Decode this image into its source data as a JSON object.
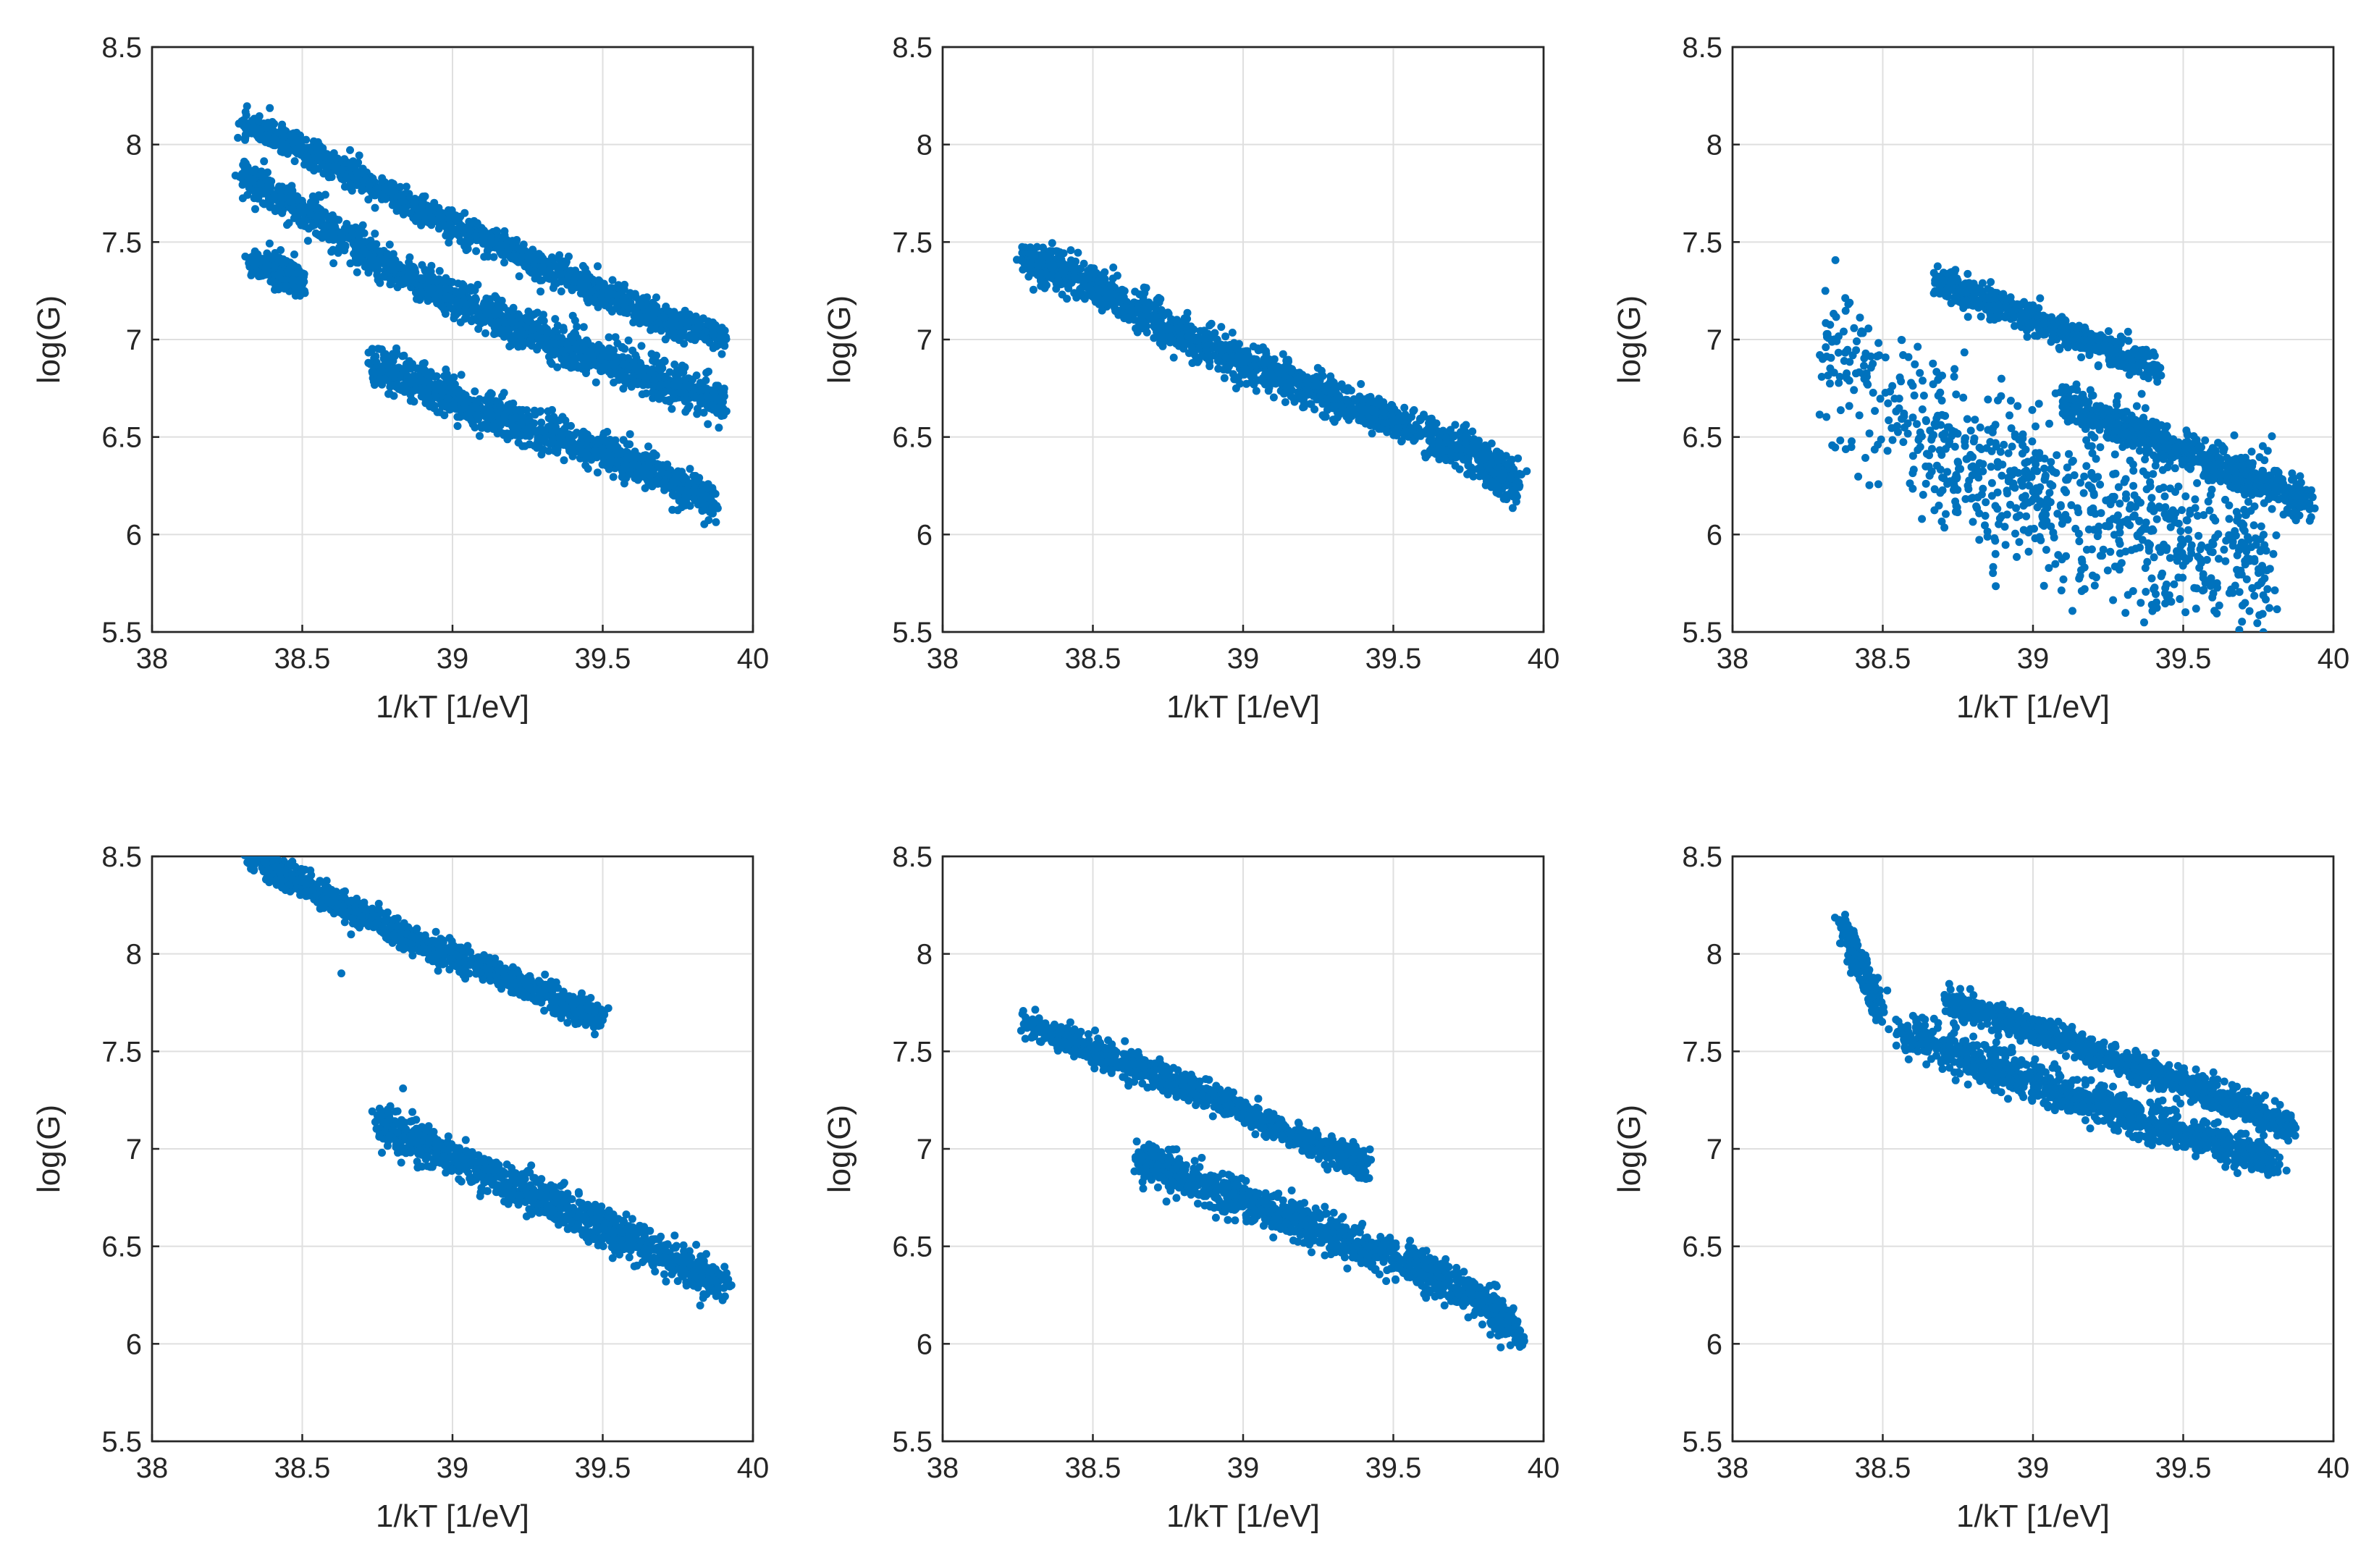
{
  "chart_data": [
    {
      "type": "scatter",
      "panel": "top-left",
      "xlabel": "1/kT  [1/eV]",
      "ylabel": "log(G)",
      "xlim": [
        38,
        40
      ],
      "ylim": [
        5.5,
        8.5
      ],
      "xticks": [
        "38",
        "38.5",
        "39",
        "39.5",
        "40"
      ],
      "yticks": [
        "5.5",
        "6",
        "6.5",
        "7",
        "7.5",
        "8",
        "8.5"
      ],
      "grid": true,
      "color": "#0072bd",
      "series": [
        {
          "name": "upper band",
          "x": [
            38.3,
            38.5,
            38.7,
            38.9,
            39.1,
            39.3,
            39.5,
            39.7,
            39.9
          ],
          "y": [
            8.12,
            7.98,
            7.82,
            7.66,
            7.52,
            7.38,
            7.24,
            7.1,
            7.01
          ]
        },
        {
          "name": "middle band",
          "x": [
            38.3,
            38.5,
            38.7,
            38.9,
            39.1,
            39.3,
            39.5,
            39.7,
            39.9
          ],
          "y": [
            7.85,
            7.67,
            7.45,
            7.28,
            7.15,
            7.02,
            6.9,
            6.78,
            6.68
          ]
        },
        {
          "name": "lower band",
          "x": [
            38.72,
            38.9,
            39.1,
            39.3,
            39.5,
            39.7,
            39.87
          ],
          "y": [
            6.88,
            6.76,
            6.64,
            6.52,
            6.42,
            6.3,
            6.16
          ]
        },
        {
          "name": "outliers",
          "x": [
            38.33,
            38.43,
            38.5
          ],
          "y": [
            7.4,
            7.35,
            7.28
          ]
        }
      ]
    },
    {
      "type": "scatter",
      "panel": "top-middle",
      "xlabel": "1/kT  [1/eV]",
      "ylabel": "log(G)",
      "xlim": [
        38,
        40
      ],
      "ylim": [
        5.5,
        8.5
      ],
      "xticks": [
        "38",
        "38.5",
        "39",
        "39.5",
        "40"
      ],
      "yticks": [
        "5.5",
        "6",
        "6.5",
        "7",
        "7.5",
        "8",
        "8.5"
      ],
      "grid": true,
      "color": "#0072bd",
      "series": [
        {
          "name": "single band",
          "x": [
            38.27,
            38.4,
            38.6,
            38.8,
            39.0,
            39.2,
            39.4,
            39.6,
            39.8,
            39.92
          ],
          "y": [
            7.42,
            7.35,
            7.2,
            7.02,
            6.88,
            6.76,
            6.64,
            6.52,
            6.38,
            6.25
          ]
        }
      ]
    },
    {
      "type": "scatter",
      "panel": "top-right",
      "xlabel": "1/kT  [1/eV]",
      "ylabel": "log(G)",
      "xlim": [
        38,
        40
      ],
      "ylim": [
        5.5,
        8.5
      ],
      "xticks": [
        "38",
        "38.5",
        "39",
        "39.5",
        "40"
      ],
      "yticks": [
        "5.5",
        "6",
        "6.5",
        "7",
        "7.5",
        "8",
        "8.5"
      ],
      "grid": true,
      "color": "#0072bd",
      "series": [
        {
          "name": "upper band",
          "x": [
            38.68,
            38.8,
            39.0,
            39.2,
            39.42
          ],
          "y": [
            7.32,
            7.22,
            7.1,
            6.98,
            6.85
          ]
        },
        {
          "name": "middle band",
          "x": [
            39.1,
            39.3,
            39.5,
            39.7,
            39.92
          ],
          "y": [
            6.68,
            6.55,
            6.42,
            6.3,
            6.16
          ]
        },
        {
          "name": "diffuse cluster",
          "x": [
            38.3,
            38.6,
            38.8,
            39.0,
            39.2,
            39.4,
            39.6,
            39.8
          ],
          "y": [
            6.9,
            6.6,
            6.35,
            6.22,
            6.12,
            6.02,
            5.95,
            5.9
          ]
        }
      ]
    },
    {
      "type": "scatter",
      "panel": "bottom-left",
      "xlabel": "1/kT  [1/eV]",
      "ylabel": "log(G)",
      "xlim": [
        38,
        40
      ],
      "ylim": [
        5.5,
        8.5
      ],
      "xticks": [
        "38",
        "38.5",
        "39",
        "39.5",
        "40"
      ],
      "yticks": [
        "5.5",
        "6",
        "6.5",
        "7",
        "7.5",
        "8",
        "8.5"
      ],
      "grid": true,
      "color": "#0072bd",
      "series": [
        {
          "name": "upper band",
          "x": [
            38.32,
            38.5,
            38.7,
            38.9,
            39.1,
            39.3,
            39.5
          ],
          "y": [
            8.5,
            8.36,
            8.2,
            8.05,
            7.93,
            7.8,
            7.66
          ]
        },
        {
          "name": "lower band",
          "x": [
            38.75,
            38.9,
            39.1,
            39.3,
            39.5,
            39.7,
            39.92
          ],
          "y": [
            7.15,
            7.02,
            6.88,
            6.74,
            6.6,
            6.45,
            6.3
          ]
        },
        {
          "name": "outlier",
          "x": [
            38.63
          ],
          "y": [
            7.9
          ]
        }
      ]
    },
    {
      "type": "scatter",
      "panel": "bottom-middle",
      "xlabel": "1/kT  [1/eV]",
      "ylabel": "log(G)",
      "xlim": [
        38,
        40
      ],
      "ylim": [
        5.5,
        8.5
      ],
      "xticks": [
        "38",
        "38.5",
        "39",
        "39.5",
        "40"
      ],
      "yticks": [
        "5.5",
        "6",
        "6.5",
        "7",
        "7.5",
        "8",
        "8.5"
      ],
      "grid": true,
      "color": "#0072bd",
      "series": [
        {
          "name": "upper band",
          "x": [
            38.27,
            38.5,
            38.7,
            38.9,
            39.1,
            39.3,
            39.4
          ],
          "y": [
            7.64,
            7.5,
            7.38,
            7.26,
            7.12,
            6.98,
            6.92
          ]
        },
        {
          "name": "lower band",
          "x": [
            38.65,
            38.8,
            39.0,
            39.2,
            39.4,
            39.6,
            39.8,
            39.92
          ],
          "y": [
            6.95,
            6.85,
            6.74,
            6.62,
            6.5,
            6.38,
            6.22,
            6.07
          ]
        }
      ]
    },
    {
      "type": "scatter",
      "panel": "bottom-right",
      "xlabel": "1/kT  [1/eV]",
      "ylabel": "log(G)",
      "xlim": [
        38,
        40
      ],
      "ylim": [
        5.5,
        8.5
      ],
      "xticks": [
        "38",
        "38.5",
        "39",
        "39.5",
        "40"
      ],
      "yticks": [
        "5.5",
        "6",
        "6.5",
        "7",
        "7.5",
        "8",
        "8.5"
      ],
      "grid": true,
      "color": "#0072bd",
      "series": [
        {
          "name": "upper band",
          "x": [
            38.72,
            38.9,
            39.1,
            39.3,
            39.5,
            39.7,
            39.86
          ],
          "y": [
            7.75,
            7.66,
            7.56,
            7.45,
            7.34,
            7.22,
            7.1
          ]
        },
        {
          "name": "lower band",
          "x": [
            38.55,
            38.8,
            39.0,
            39.2,
            39.4,
            39.6,
            39.82
          ],
          "y": [
            7.6,
            7.46,
            7.34,
            7.24,
            7.13,
            7.03,
            6.92
          ]
        },
        {
          "name": "outliers",
          "x": [
            38.36,
            38.49
          ],
          "y": [
            8.17,
            7.71
          ]
        }
      ]
    }
  ]
}
